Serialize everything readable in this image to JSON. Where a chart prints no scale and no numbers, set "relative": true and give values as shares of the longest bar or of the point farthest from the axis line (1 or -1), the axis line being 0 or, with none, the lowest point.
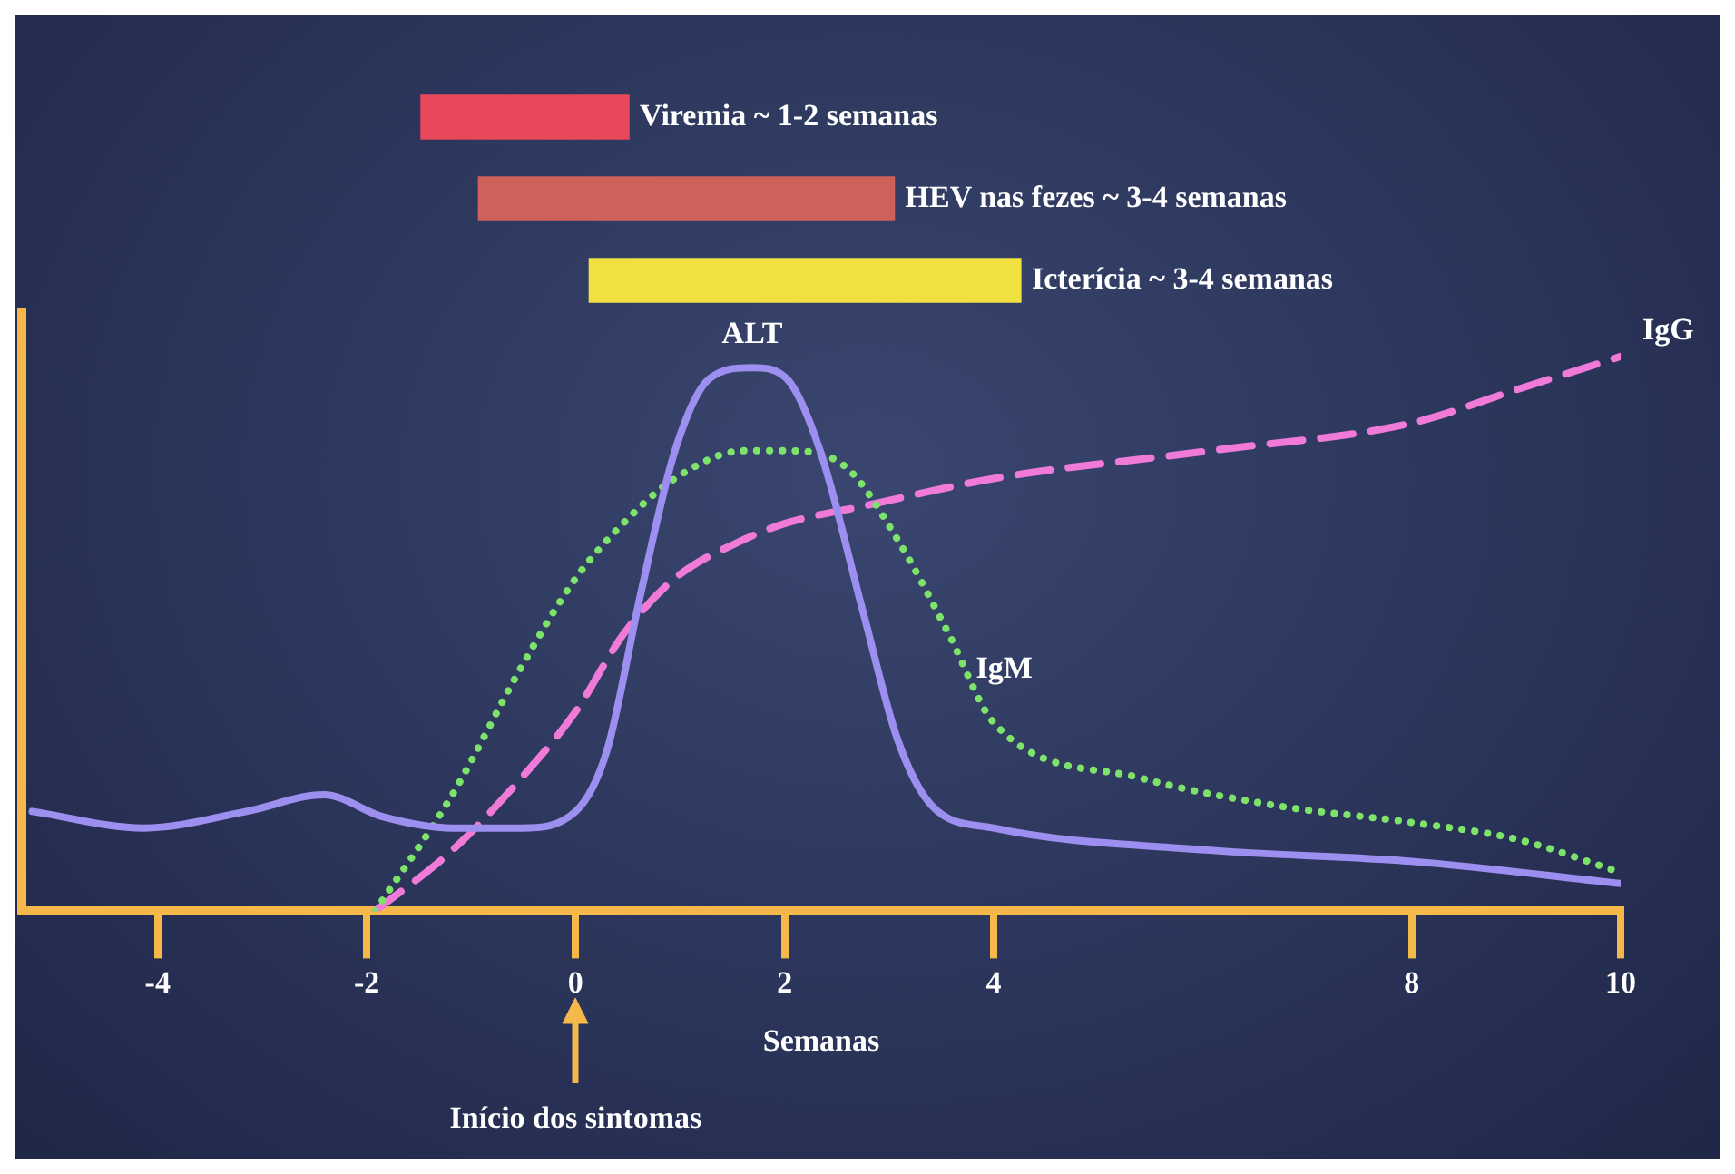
{
  "chart_data": [
    {
      "type": "bar",
      "orientation": "horizontal",
      "categories": [
        "Viremia ~ 1-2 semanas",
        "HEV nas fezes ~ 3-4 semanas",
        "Icterícia ~ 3-4 semanas"
      ],
      "base": [
        -1.48,
        -0.93,
        0.13
      ],
      "values": [
        1.99,
        3.98,
        4.13
      ],
      "colors": [
        "#e8485a",
        "#d0605a",
        "#f0e040"
      ],
      "xlim": [
        -5.3,
        10
      ],
      "tick_labels": false
    },
    {
      "type": "line",
      "xlabel": "Semanas",
      "relative": true,
      "marker": "none",
      "xlim": [
        -5.3,
        10
      ],
      "xticks": [
        -4,
        -2,
        0,
        2,
        4,
        8,
        10
      ],
      "series": [
        {
          "name": "ALT",
          "color": "#9d8ff0",
          "line_style": "solid",
          "x": [
            -5.2,
            -4.13,
            -3.15,
            -2.41,
            -1.84,
            -1.18,
            -0.52,
            0,
            0.3,
            0.62,
            0.95,
            1.28,
            1.69,
            2.02,
            2.34,
            2.75,
            3.08,
            3.41,
            4,
            6.07,
            8,
            10
          ],
          "values": [
            0.18,
            0.15,
            0.18,
            0.21,
            0.17,
            0.15,
            0.15,
            0.18,
            0.29,
            0.57,
            0.83,
            0.96,
            0.98,
            0.96,
            0.83,
            0.54,
            0.31,
            0.19,
            0.15,
            0.11,
            0.09,
            0.05
          ]
        },
        {
          "name": "IgM",
          "color": "#7de36a",
          "line_style": "dotted",
          "x": [
            -1.92,
            -1.18,
            -0.52,
            0,
            0.46,
            0.95,
            1.61,
            2.02,
            2.59,
            3.08,
            3.57,
            4,
            5.41,
            6.72,
            8,
            9,
            10
          ],
          "values": [
            0,
            0.21,
            0.44,
            0.6,
            0.7,
            0.78,
            0.83,
            0.83,
            0.8,
            0.67,
            0.5,
            0.34,
            0.24,
            0.19,
            0.16,
            0.13,
            0.07
          ]
        },
        {
          "name": "IgG",
          "color": "#f07ad8",
          "line_style": "dashed",
          "x": [
            -1.92,
            -1.18,
            -0.52,
            0,
            0.46,
            0.95,
            1.61,
            2.02,
            2.75,
            4,
            6.07,
            8,
            9,
            10
          ],
          "values": [
            0,
            0.11,
            0.24,
            0.36,
            0.5,
            0.6,
            0.67,
            0.7,
            0.73,
            0.78,
            0.83,
            0.88,
            0.94,
            1
          ]
        }
      ],
      "ref_lines": [
        {
          "axis": "x",
          "value": 0,
          "label": "Início dos sintomas",
          "color": "#f5b84a"
        }
      ]
    }
  ]
}
